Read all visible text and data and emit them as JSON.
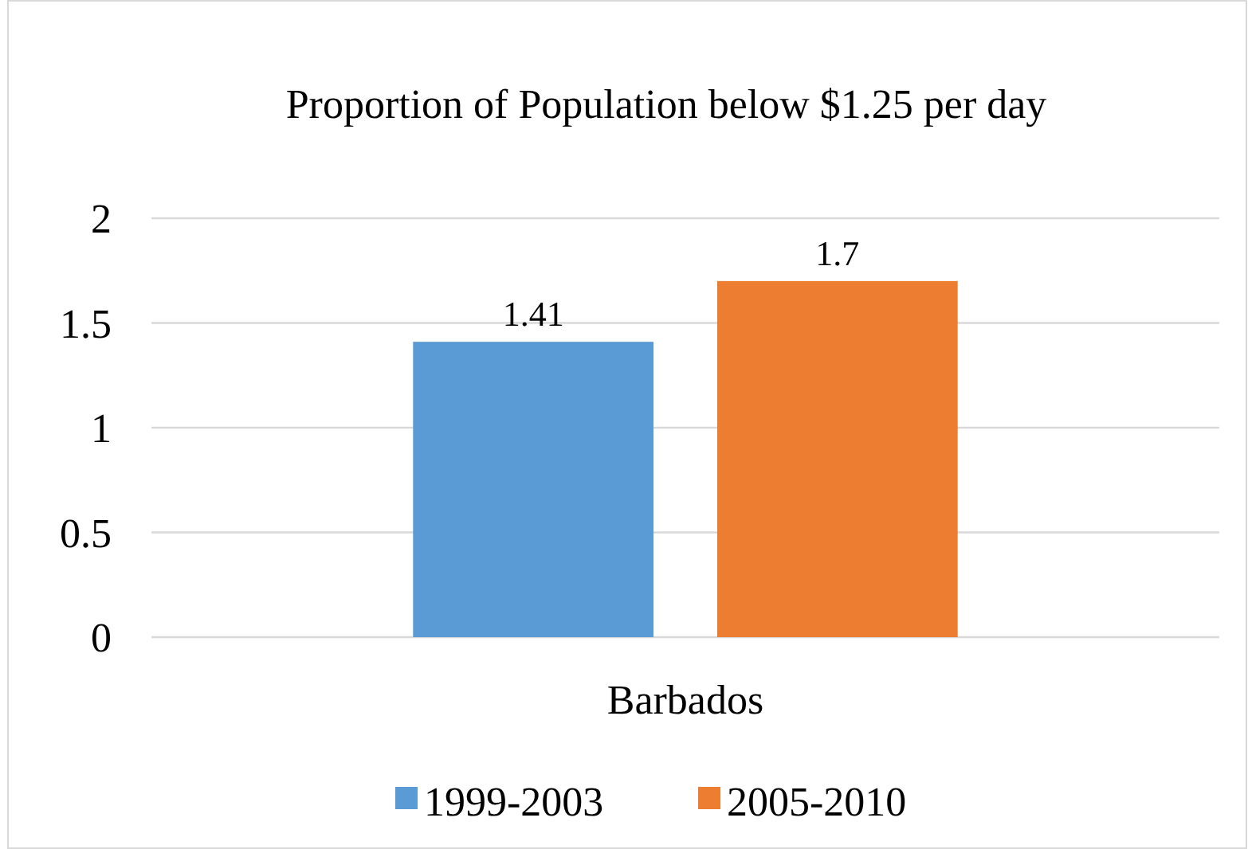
{
  "chart_data": {
    "type": "bar",
    "title": "Proportion of Population below $1.25 per day",
    "categories": [
      "Barbados"
    ],
    "series": [
      {
        "name": "1999-2003",
        "color": "#5b9bd5",
        "values": [
          1.41
        ]
      },
      {
        "name": "2005-2010",
        "color": "#ed7d31",
        "values": [
          1.7
        ]
      }
    ],
    "ylim": [
      0,
      2
    ],
    "yticks": [
      0,
      0.5,
      1,
      1.5,
      2
    ],
    "grid": "y",
    "data_labels": true,
    "legend": "bottom"
  }
}
